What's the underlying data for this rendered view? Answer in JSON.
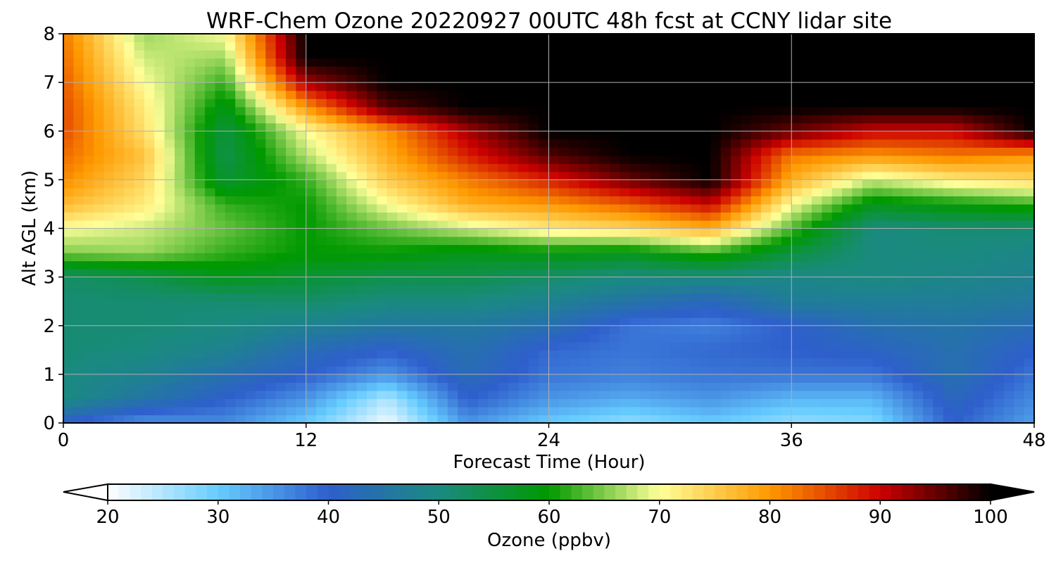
{
  "chart_data": {
    "type": "heatmap",
    "title": "WRF-Chem Ozone  20220927 00UTC 48h fcst at CCNY lidar site",
    "xlabel": "Forecast Time (Hour)",
    "ylabel": "Alt AGL (km)",
    "xlim": [
      0,
      48
    ],
    "ylim": [
      0,
      8
    ],
    "xticks": [
      0,
      12,
      24,
      36,
      48
    ],
    "yticks": [
      0,
      1,
      2,
      3,
      4,
      5,
      6,
      7,
      8
    ],
    "grid": true,
    "colorbar": {
      "label": "Ozone  (ppbv)",
      "range": [
        20,
        100
      ],
      "ticks": [
        20,
        30,
        40,
        50,
        60,
        70,
        80,
        90,
        100
      ],
      "extend": "both",
      "colors": [
        "#ffffff",
        "#66ccff",
        "#2e5fcc",
        "#1a8a80",
        "#009900",
        "#ffff99",
        "#ff9900",
        "#cc0000",
        "#000000"
      ]
    },
    "x": [
      0,
      4,
      8,
      12,
      16,
      20,
      24,
      28,
      32,
      36,
      40,
      44,
      48
    ],
    "y": [
      0,
      0.5,
      1,
      1.5,
      2,
      2.5,
      3,
      3.5,
      4,
      4.5,
      5,
      5.5,
      6,
      6.5,
      7,
      7.5,
      8
    ],
    "z": [
      [
        40,
        35,
        36,
        30,
        21,
        35,
        30,
        27,
        30,
        27,
        28,
        40,
        34
      ],
      [
        50,
        45,
        40,
        35,
        25,
        40,
        35,
        33,
        35,
        32,
        32,
        42,
        36
      ],
      [
        50,
        48,
        44,
        40,
        35,
        43,
        38,
        37,
        38,
        38,
        38,
        44,
        38
      ],
      [
        51,
        50,
        48,
        43,
        40,
        44,
        39,
        38,
        39,
        40,
        41,
        44,
        40
      ],
      [
        51,
        51,
        50,
        48,
        46,
        46,
        44,
        38,
        37,
        40,
        44,
        45,
        43
      ],
      [
        51,
        51,
        51,
        52,
        50,
        50,
        48,
        45,
        42,
        47,
        47,
        47,
        46
      ],
      [
        52,
        54,
        58,
        56,
        54,
        54,
        52,
        50,
        50,
        49,
        50,
        49,
        48
      ],
      [
        65,
        66,
        62,
        60,
        60,
        58,
        59,
        58,
        62,
        55,
        50,
        50,
        49
      ],
      [
        70,
        68,
        64,
        60,
        64,
        68,
        72,
        74,
        78,
        63,
        50,
        51,
        51
      ],
      [
        77,
        72,
        62,
        60,
        70,
        78,
        80,
        84,
        90,
        70,
        58,
        60,
        62
      ],
      [
        81,
        74,
        56,
        62,
        75,
        82,
        88,
        95,
        100,
        78,
        68,
        72,
        74
      ],
      [
        83,
        76,
        54,
        67,
        78,
        88,
        96,
        100,
        100,
        82,
        80,
        82,
        80
      ],
      [
        85,
        73,
        55,
        70,
        80,
        92,
        100,
        100,
        100,
        95,
        90,
        90,
        100
      ],
      [
        85,
        72,
        58,
        80,
        96,
        100,
        100,
        100,
        100,
        100,
        100,
        100,
        100
      ],
      [
        84,
        70,
        62,
        92,
        100,
        100,
        100,
        100,
        100,
        100,
        100,
        100,
        100
      ],
      [
        83,
        68,
        66,
        100,
        100,
        100,
        100,
        100,
        100,
        100,
        100,
        100,
        100
      ],
      [
        82,
        66,
        70,
        100,
        100,
        100,
        100,
        100,
        100,
        100,
        100,
        100,
        100
      ]
    ]
  }
}
